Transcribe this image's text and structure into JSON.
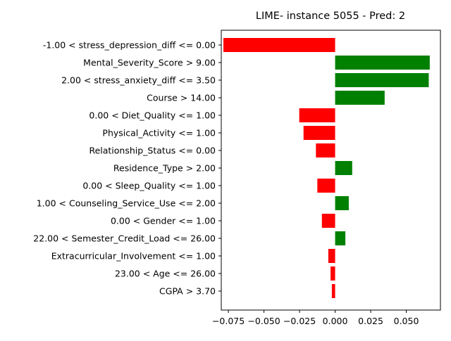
{
  "chart_data": {
    "type": "bar",
    "orientation": "horizontal",
    "title": "LIME- instance 5055 - Pred: 2",
    "xlabel": "",
    "ylabel": "",
    "xlim": [
      -0.08,
      0.074
    ],
    "grid": false,
    "legend": "none",
    "colors": {
      "positive": "#008000",
      "negative": "#ff0000"
    },
    "categories": [
      "-1.00 < stress_depression_diff <= 0.00",
      "Mental_Severity_Score > 9.00",
      "2.00 < stress_anxiety_diff <= 3.50",
      "Course > 14.00",
      "0.00 < Diet_Quality <= 1.00",
      "Physical_Activity <= 1.00",
      "Relationship_Status <= 0.00",
      "Residence_Type > 2.00",
      "0.00 < Sleep_Quality <= 1.00",
      "1.00 < Counseling_Service_Use <= 2.00",
      "0.00 < Gender <= 1.00",
      "22.00 < Semester_Credit_Load <= 26.00",
      "Extracurricular_Involvement <= 1.00",
      "23.00 < Age <= 26.00",
      "CGPA > 3.70"
    ],
    "values": [
      -0.0785,
      0.0665,
      0.0658,
      0.0348,
      -0.0252,
      -0.0222,
      -0.0135,
      0.012,
      -0.0125,
      0.0096,
      -0.0093,
      0.0072,
      -0.0048,
      -0.0032,
      -0.0023
    ],
    "xticks": [
      -0.075,
      -0.05,
      -0.025,
      0.0,
      0.025,
      0.05
    ],
    "xtick_labels": [
      "−0.075",
      "−0.050",
      "−0.025",
      "0.000",
      "0.025",
      "0.050"
    ]
  }
}
